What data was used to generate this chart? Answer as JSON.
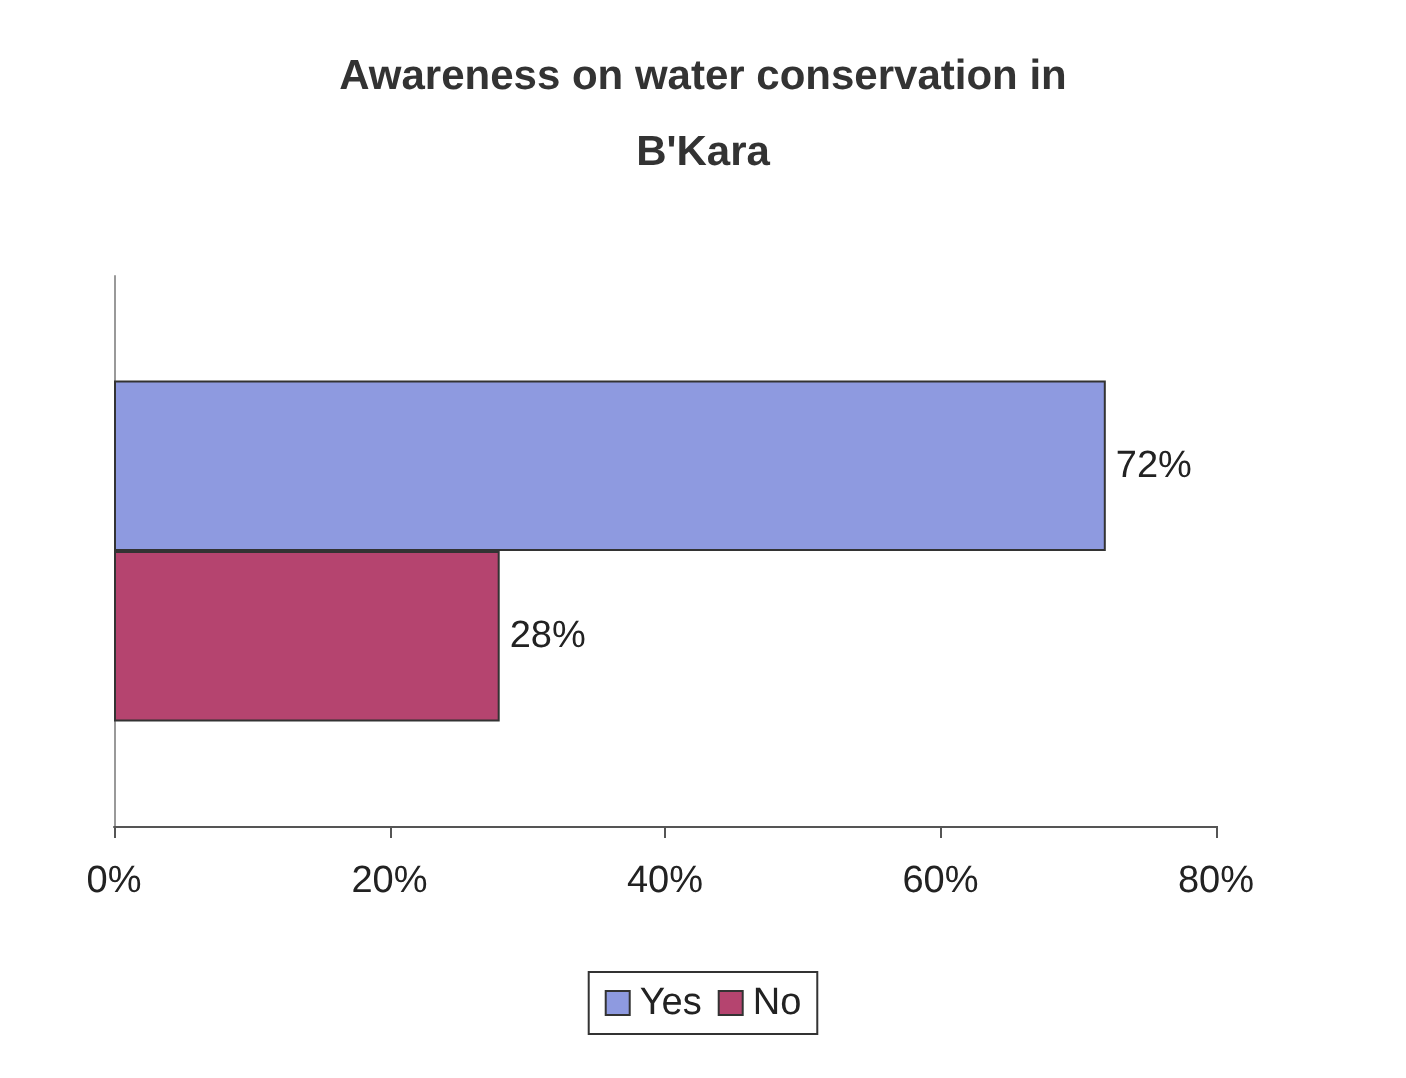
{
  "chart_data": {
    "type": "bar",
    "orientation": "horizontal",
    "title": "Awareness on water conservation in\nB'Kara",
    "categories": [
      null
    ],
    "series": [
      {
        "name": "Yes",
        "color": "#8e9ae0",
        "values": [
          72
        ],
        "value_labels": [
          "72%"
        ]
      },
      {
        "name": "No",
        "color": "#b5446f",
        "values": [
          28
        ],
        "value_labels": [
          "28%"
        ]
      }
    ],
    "xlim": [
      0,
      80
    ],
    "xticks": [
      {
        "value": 0,
        "label": "0%"
      },
      {
        "value": 20,
        "label": "20%"
      },
      {
        "value": 40,
        "label": "40%"
      },
      {
        "value": 60,
        "label": "60%"
      },
      {
        "value": 80,
        "label": "80%"
      }
    ],
    "grid": false,
    "legend": "bottom"
  }
}
